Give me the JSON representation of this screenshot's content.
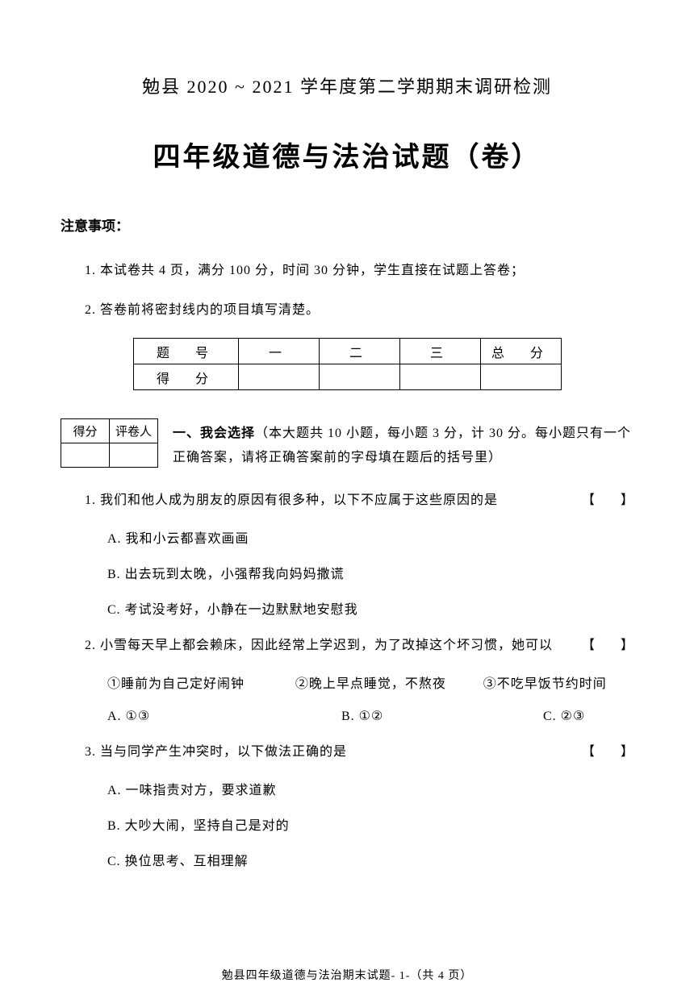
{
  "header": "勉县 2020 ~ 2021 学年度第二学期期末调研检测",
  "title": "四年级道德与法治试题（卷）",
  "notice_label": "注意事项：",
  "notices": [
    "1. 本试卷共 4 页，满分 100 分，时间 30 分钟，学生直接在试题上答卷；",
    "2. 答卷前将密封线内的项目填写清楚。"
  ],
  "score_table": {
    "headers": [
      "题　号",
      "一",
      "二",
      "三",
      "总　分"
    ],
    "row_label": "得　分"
  },
  "grader_table": {
    "headers": [
      "得分",
      "评卷人"
    ]
  },
  "section1": {
    "bold": "一、我会选择",
    "rest": "（本大题共 10 小题，每小题 3 分，计 30 分。每小题只有一个正确答案，请将正确答案前的字母填在题后的括号里）"
  },
  "bracket": "【　　】",
  "questions": [
    {
      "stem": "1. 我们和他人成为朋友的原因有很多种，以下不应属于这些原因的是",
      "options": [
        "A. 我和小云都喜欢画画",
        "B. 出去玩到太晚，小强帮我向妈妈撒谎",
        "C. 考试没考好，小静在一边默默地安慰我"
      ]
    },
    {
      "stem": "2. 小雪每天早上都会赖床，因此经常上学迟到，为了改掉这个坏习惯，她可以",
      "sub_options": [
        "①睡前为自己定好闹钟",
        "②晚上早点睡觉，不熬夜",
        "③不吃早饭节约时间"
      ],
      "choices": [
        "A. ①③",
        "B. ①②",
        "C. ②③"
      ]
    },
    {
      "stem": "3. 当与同学产生冲突时，以下做法正确的是",
      "options": [
        "A. 一味指责对方，要求道歉",
        "B. 大吵大闹，坚持自己是对的",
        "C. 换位思考、互相理解"
      ]
    }
  ],
  "footer": "勉县四年级道德与法治期末试题- 1-（共 4 页）"
}
